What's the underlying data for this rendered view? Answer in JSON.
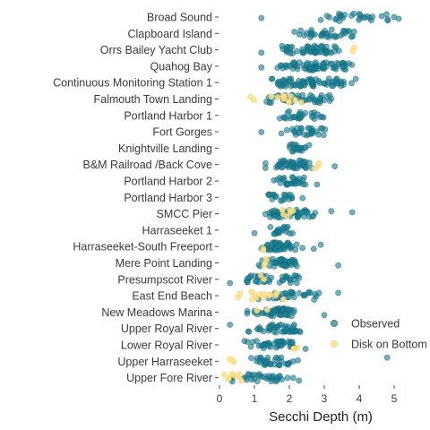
{
  "chart_data": {
    "type": "scatter",
    "xlabel": "Secchi Depth (m)",
    "ylabel": "",
    "xlim": [
      0,
      5.5
    ],
    "x_ticks": [
      0,
      1,
      2,
      3,
      4,
      5
    ],
    "grid": false,
    "legend_position": "right",
    "categories": [
      "Broad Sound",
      "Clapboard Island",
      "Orrs Bailey Yacht Club",
      "Quahog Bay",
      "Continuous Monitoring Station 1",
      "Falmouth Town Landing",
      "Portland Harbor 1",
      "Fort Gorges",
      "Knightville Landing",
      "B&M Railroad /Back Cove",
      "Portland Harbor 2",
      "Portland Harbor 3",
      "SMCC Pier",
      "Harraseeket 1",
      "Harraseeket-South Freeport",
      "Mere Point Landing",
      "Presumpscot River",
      "East End Beach",
      "New Meadows Marina",
      "Upper Royal River",
      "Lower Royal River",
      "Upper Harraseeket",
      "Upper Fore River"
    ],
    "series": [
      {
        "name": "Observed",
        "color": "#1a7f93",
        "ranges": [
          [
            2.4,
            5.4,
            30,
            [
              1.2
            ]
          ],
          [
            2.0,
            4.0,
            38,
            []
          ],
          [
            1.6,
            3.6,
            55,
            [
              1.2
            ]
          ],
          [
            1.6,
            3.9,
            70,
            [
              1.2
            ]
          ],
          [
            1.2,
            4.0,
            70,
            []
          ],
          [
            1.2,
            3.6,
            45,
            []
          ],
          [
            1.6,
            3.1,
            30,
            []
          ],
          [
            1.6,
            3.3,
            28,
            [
              1.2
            ]
          ],
          [
            1.8,
            2.6,
            22,
            []
          ],
          [
            1.2,
            2.8,
            45,
            [
              3.3
            ]
          ],
          [
            1.4,
            2.8,
            30,
            []
          ],
          [
            1.3,
            2.4,
            20,
            []
          ],
          [
            1.2,
            2.8,
            50,
            [
              3.2,
              3.8
            ]
          ],
          [
            1.2,
            2.2,
            20,
            [
              1.0
            ]
          ],
          [
            0.9,
            2.4,
            50,
            [
              2.7,
              2.9
            ]
          ],
          [
            0.9,
            2.5,
            40,
            [
              3.4
            ]
          ],
          [
            0.5,
            2.6,
            40,
            [
              0.3
            ]
          ],
          [
            1.0,
            3.0,
            30,
            [
              3.4
            ]
          ],
          [
            0.7,
            2.7,
            50,
            [
              3.0
            ]
          ],
          [
            0.6,
            2.5,
            45,
            [
              0.3
            ]
          ],
          [
            0.6,
            2.8,
            45,
            []
          ],
          [
            0.5,
            2.4,
            35,
            [
              4.8
            ]
          ],
          [
            0.2,
            2.4,
            35,
            []
          ]
        ]
      },
      {
        "name": "Disk on Bottom",
        "color": "#fde28a",
        "ranges": [
          [
            0,
            0,
            0,
            []
          ],
          [
            0,
            0,
            0,
            []
          ],
          [
            3.6,
            4.0,
            2,
            []
          ],
          [
            0,
            0,
            0,
            []
          ],
          [
            0,
            0,
            0,
            []
          ],
          [
            0.7,
            3.0,
            14,
            []
          ],
          [
            0,
            0,
            0,
            []
          ],
          [
            0,
            0,
            0,
            []
          ],
          [
            0,
            0,
            0,
            []
          ],
          [
            2.6,
            3.0,
            3,
            []
          ],
          [
            0,
            0,
            0,
            []
          ],
          [
            0,
            0,
            0,
            []
          ],
          [
            1.5,
            2.5,
            6,
            []
          ],
          [
            0,
            0,
            0,
            []
          ],
          [
            1.0,
            1.4,
            2,
            []
          ],
          [
            1.0,
            1.5,
            3,
            []
          ],
          [
            1.0,
            1.5,
            2,
            []
          ],
          [
            0.4,
            1.9,
            14,
            []
          ],
          [
            1.0,
            1.5,
            2,
            []
          ],
          [
            0,
            0,
            0,
            []
          ],
          [
            2.0,
            2.4,
            3,
            []
          ],
          [
            0.2,
            0.5,
            3,
            []
          ],
          [
            0.1,
            0.8,
            8,
            []
          ]
        ]
      }
    ]
  }
}
